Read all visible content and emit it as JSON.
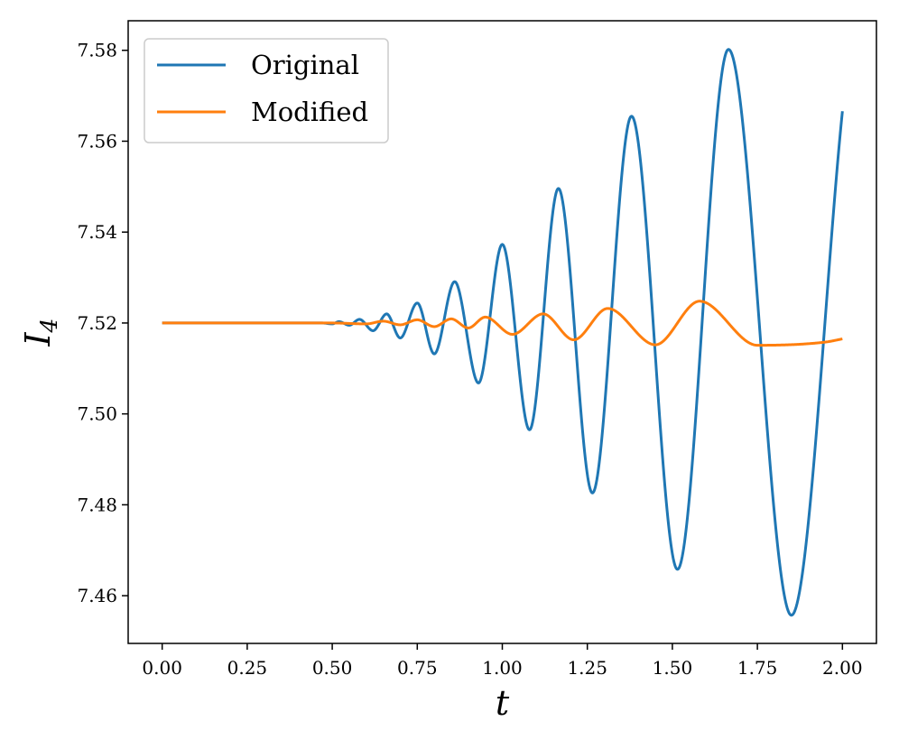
{
  "chart_data": {
    "type": "line",
    "title": "",
    "xlabel": "t",
    "ylabel": "I",
    "ylabel_subscript": "4",
    "xlim": [
      -0.1,
      2.1
    ],
    "ylim": [
      7.4495,
      7.5865
    ],
    "xticks": [
      0.0,
      0.25,
      0.5,
      0.75,
      1.0,
      1.25,
      1.5,
      1.75,
      2.0
    ],
    "xtick_labels": [
      "0.00",
      "0.25",
      "0.50",
      "0.75",
      "1.00",
      "1.25",
      "1.50",
      "1.75",
      "2.00"
    ],
    "yticks": [
      7.46,
      7.48,
      7.5,
      7.52,
      7.54,
      7.56,
      7.58
    ],
    "ytick_labels": [
      "7.46",
      "7.48",
      "7.50",
      "7.52",
      "7.54",
      "7.56",
      "7.58"
    ],
    "grid": false,
    "legend": "upper left",
    "series": [
      {
        "name": "Original",
        "color": "#1f77b4",
        "x": [
          0.0,
          0.1,
          0.2,
          0.3,
          0.4,
          0.47,
          0.5,
          0.52,
          0.55,
          0.58,
          0.62,
          0.66,
          0.7,
          0.75,
          0.8,
          0.86,
          0.93,
          1.0,
          1.08,
          1.165,
          1.265,
          1.38,
          1.515,
          1.665,
          1.85,
          2.0
        ],
        "values": [
          7.52,
          7.52,
          7.52,
          7.52,
          7.52,
          7.52,
          7.5198,
          7.5203,
          7.5195,
          7.5208,
          7.5183,
          7.522,
          7.5167,
          7.5244,
          7.5132,
          7.5291,
          7.5068,
          7.5373,
          7.4965,
          7.5496,
          7.4826,
          7.5655,
          7.4658,
          7.5802,
          7.4557,
          7.5666
        ]
      },
      {
        "name": "Modified",
        "color": "#ff7f0e",
        "x": [
          0.0,
          0.1,
          0.2,
          0.3,
          0.4,
          0.5,
          0.6,
          0.65,
          0.7,
          0.75,
          0.8,
          0.85,
          0.9,
          0.95,
          1.03,
          1.12,
          1.21,
          1.31,
          1.45,
          1.58,
          1.75,
          1.95,
          2.0
        ],
        "values": [
          7.52,
          7.52,
          7.52,
          7.52,
          7.52,
          7.52,
          7.5198,
          7.5204,
          7.5196,
          7.5207,
          7.5192,
          7.5209,
          7.5189,
          7.5213,
          7.5175,
          7.522,
          7.5163,
          7.5232,
          7.5152,
          7.5248,
          7.5151,
          7.5158,
          7.5165
        ]
      }
    ]
  }
}
